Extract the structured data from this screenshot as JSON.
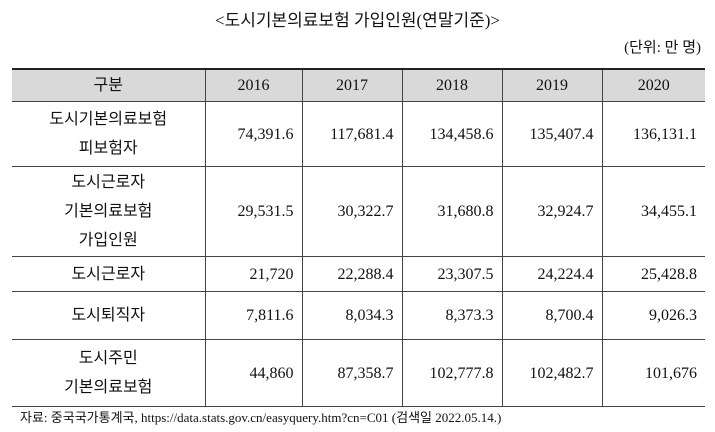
{
  "header": {
    "title": "<도시기본의료보험 가입인원(연말기준)>",
    "unit": "(단위: 만 명)"
  },
  "table": {
    "columns": [
      "구분",
      "2016",
      "2017",
      "2018",
      "2019",
      "2020"
    ],
    "rows": [
      [
        "도시기본의료보험\n피보험자",
        "74,391.6",
        "117,681.4",
        "134,458.6",
        "135,407.4",
        "136,131.1"
      ],
      [
        "도시근로자\n기본의료보험\n가입인원",
        "29,531.5",
        "30,322.7",
        "31,680.8",
        "32,924.7",
        "34,455.1"
      ],
      [
        "도시근로자",
        "21,720",
        "22,288.4",
        "23,307.5",
        "24,224.4",
        "25,428.8"
      ],
      [
        "도시퇴직자",
        "7,811.6",
        "8,034.3",
        "8,373.3",
        "8,700.4",
        "9,026.3"
      ],
      [
        "도시주민\n기본의료보험",
        "44,860",
        "87,358.7",
        "102,777.8",
        "102,482.7",
        "101,676"
      ]
    ]
  },
  "source": "자료: 중국국가통계국, https://data.stats.gov.cn/easyquery.htm?cn=C01 (검색일 2022.05.14.)"
}
